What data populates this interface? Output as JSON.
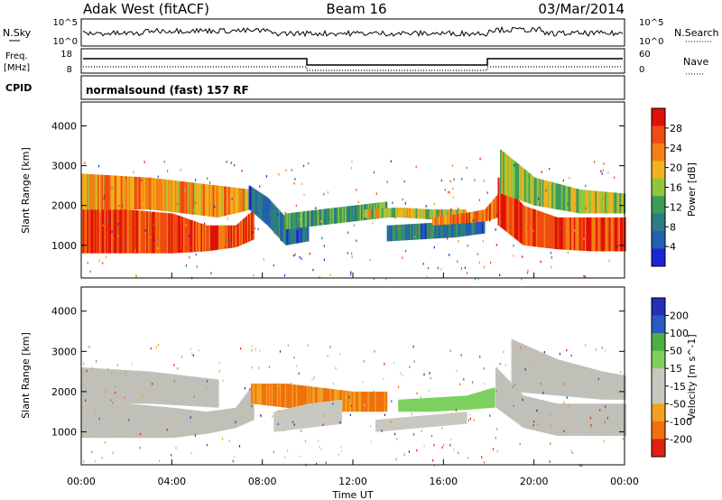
{
  "header": {
    "station": "Adak West (fitACF)",
    "beam": "Beam 16",
    "date": "03/Mar/2014"
  },
  "strip_labels": {
    "nsky": "N.Sky",
    "nsearch": "N.Search",
    "nsky_top": "10^5",
    "nsky_bottom": "10^0",
    "freq": "Freq.",
    "freq_unit": "[MHz]",
    "freq_top": "18",
    "freq_bottom": "8",
    "nave": "Nave",
    "nave_top": "60",
    "nave_bottom": "0",
    "cpid": "CPID",
    "cpid_text": "normalsound (fast) 157 RF"
  },
  "colors": {
    "power_scale": [
      "#1f24d8",
      "#235fb2",
      "#2a7d82",
      "#3f9a5a",
      "#8ec63d",
      "#f0b21d",
      "#f57f15",
      "#f04b10",
      "#e01108"
    ],
    "velocity_scale": [
      "#2530b8",
      "#2a5ac0",
      "#4bb040",
      "#7dd060",
      "#c8c8c0",
      "#c8c8c0",
      "#f2a020",
      "#f07010",
      "#e02010"
    ],
    "ground_scatter": "#c0c0b8"
  },
  "chart_data": [
    {
      "type": "heatmap",
      "title": "",
      "xlabel": "Time UT",
      "ylabel": "Slant Range [km]",
      "xlim_hours": [
        0,
        24
      ],
      "ylim": [
        180,
        4600
      ],
      "x_ticks": [
        "00:00",
        "04:00",
        "08:00",
        "12:00",
        "16:00",
        "20:00",
        "00:00"
      ],
      "y_ticks": [
        "1000",
        "2000",
        "3000",
        "4000"
      ],
      "colorbar_label": "Power [dB]",
      "colorbar_ticks": [
        "28",
        "24",
        "20",
        "16",
        "12",
        "8",
        "4"
      ],
      "colorbar_range": [
        0,
        32
      ],
      "bands": [
        {
          "t": [
            0,
            2,
            4,
            5.5,
            6.8,
            7.6
          ],
          "lo": [
            800,
            800,
            800,
            850,
            950,
            1150
          ],
          "hi": [
            1900,
            1900,
            1800,
            1500,
            1500,
            1900
          ],
          "value": 27
        },
        {
          "t": [
            0,
            3,
            6,
            7.5
          ],
          "lo": [
            1900,
            1900,
            1700,
            1900
          ],
          "hi": [
            2800,
            2700,
            2500,
            2400
          ],
          "value": 22
        },
        {
          "t": [
            7.4,
            8.2,
            9,
            10
          ],
          "lo": [
            1900,
            1500,
            1000,
            1100
          ],
          "hi": [
            2500,
            2200,
            1700,
            1600
          ],
          "value": 6
        },
        {
          "t": [
            9,
            10.5,
            12,
            13.5
          ],
          "lo": [
            1400,
            1500,
            1600,
            1700
          ],
          "hi": [
            1800,
            1900,
            2000,
            2100
          ],
          "value": 12
        },
        {
          "t": [
            12.5,
            14,
            15.5,
            17
          ],
          "lo": [
            1700,
            1700,
            1650,
            1650
          ],
          "hi": [
            1900,
            1950,
            1900,
            1900
          ],
          "value": 18
        },
        {
          "t": [
            13.5,
            15,
            16.5,
            17.8
          ],
          "lo": [
            1100,
            1150,
            1200,
            1300
          ],
          "hi": [
            1500,
            1550,
            1600,
            1700
          ],
          "value": 8
        },
        {
          "t": [
            15.5,
            16.8,
            17.8,
            18.4
          ],
          "lo": [
            1500,
            1550,
            1600,
            1700
          ],
          "hi": [
            1700,
            1800,
            1900,
            2300
          ],
          "value": 24
        },
        {
          "t": [
            18.4,
            19.5,
            21,
            22.5,
            24
          ],
          "lo": [
            1500,
            1000,
            900,
            850,
            850
          ],
          "hi": [
            2700,
            2000,
            1700,
            1700,
            1700
          ],
          "value": 27
        },
        {
          "t": [
            18.5,
            20,
            22,
            24
          ],
          "lo": [
            2300,
            2000,
            1800,
            1800
          ],
          "hi": [
            3400,
            2700,
            2400,
            2300
          ],
          "value": 16
        }
      ]
    },
    {
      "type": "heatmap",
      "title": "",
      "xlabel": "Time UT",
      "ylabel": "Slant Range [km]",
      "xlim_hours": [
        0,
        24
      ],
      "ylim": [
        180,
        4600
      ],
      "x_ticks": [
        "00:00",
        "04:00",
        "08:00",
        "12:00",
        "16:00",
        "20:00",
        "00:00"
      ],
      "y_ticks": [
        "1000",
        "2000",
        "3000",
        "4000"
      ],
      "colorbar_label": "Velocity [m s^-1]",
      "colorbar_ticks": [
        "200",
        "100",
        "50",
        "15",
        "-15",
        "-50",
        "-100",
        "-200"
      ],
      "colorbar_range": [
        -250,
        250
      ],
      "bands": [
        {
          "t": [
            0,
            2,
            4,
            5.5,
            6.8,
            7.6
          ],
          "lo": [
            850,
            850,
            850,
            950,
            1100,
            1300
          ],
          "hi": [
            1700,
            1700,
            1600,
            1500,
            1600,
            2200
          ],
          "value": 0
        },
        {
          "t": [
            7.5,
            9,
            10.5,
            12,
            13.5
          ],
          "lo": [
            1700,
            1600,
            1500,
            1500,
            1500
          ],
          "hi": [
            2200,
            2200,
            2100,
            2000,
            2000
          ],
          "value": -140
        },
        {
          "t": [
            8.5,
            10,
            11.5
          ],
          "lo": [
            1000,
            1100,
            1200
          ],
          "hi": [
            1500,
            1700,
            1800
          ],
          "value": -60
        },
        {
          "t": [
            14,
            15.5,
            17,
            18.2
          ],
          "lo": [
            1500,
            1500,
            1550,
            1600
          ],
          "hi": [
            1800,
            1850,
            1900,
            2100
          ],
          "value": 80
        },
        {
          "t": [
            13,
            15,
            17
          ],
          "lo": [
            1000,
            1100,
            1200
          ],
          "hi": [
            1300,
            1400,
            1500
          ],
          "value": -60
        },
        {
          "t": [
            18.3,
            19.5,
            21,
            22.5,
            24
          ],
          "lo": [
            1600,
            1100,
            900,
            900,
            900
          ],
          "hi": [
            2600,
            1900,
            1700,
            1700,
            1700
          ],
          "value": 0
        },
        {
          "t": [
            0,
            3,
            6
          ],
          "lo": [
            1700,
            1700,
            1600
          ],
          "hi": [
            2600,
            2500,
            2300
          ],
          "value": 0
        },
        {
          "t": [
            19,
            21,
            23,
            24
          ],
          "lo": [
            2000,
            1900,
            1800,
            1800
          ],
          "hi": [
            3300,
            2800,
            2500,
            2400
          ],
          "value": 0
        }
      ]
    }
  ]
}
